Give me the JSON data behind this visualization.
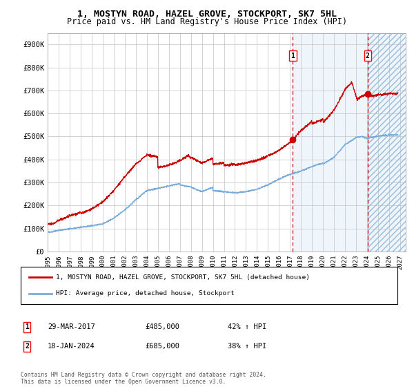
{
  "title": "1, MOSTYN ROAD, HAZEL GROVE, STOCKPORT, SK7 5HL",
  "subtitle": "Price paid vs. HM Land Registry's House Price Index (HPI)",
  "legend_line1": "1, MOSTYN ROAD, HAZEL GROVE, STOCKPORT, SK7 5HL (detached house)",
  "legend_line2": "HPI: Average price, detached house, Stockport",
  "annotation1_date": "29-MAR-2017",
  "annotation1_price": "£485,000",
  "annotation1_hpi": "42% ↑ HPI",
  "annotation2_date": "18-JAN-2024",
  "annotation2_price": "£685,000",
  "annotation2_hpi": "38% ↑ HPI",
  "footer": "Contains HM Land Registry data © Crown copyright and database right 2024.\nThis data is licensed under the Open Government Licence v3.0.",
  "xmin": 1995.0,
  "xmax": 2027.5,
  "ymin": 0,
  "ymax": 950000,
  "yticks": [
    0,
    100000,
    200000,
    300000,
    400000,
    500000,
    600000,
    700000,
    800000,
    900000
  ],
  "ytick_labels": [
    "£0",
    "£100K",
    "£200K",
    "£300K",
    "£400K",
    "£500K",
    "£600K",
    "£700K",
    "£800K",
    "£900K"
  ],
  "point1_x": 2017.24,
  "point1_y": 485000,
  "point2_x": 2024.05,
  "point2_y": 685000,
  "vline1_x": 2017.24,
  "vline2_x": 2024.05,
  "shade_start": 2017.24,
  "shade_end": 2024.05,
  "hatch_start": 2024.05,
  "hatch_end": 2027.5,
  "red_line_color": "#cc0000",
  "blue_line_color": "#7aacdb",
  "shade_color": "#ddeeff",
  "hatch_color": "#ddeeff",
  "bg_color": "#ffffff",
  "grid_color": "#cccccc"
}
